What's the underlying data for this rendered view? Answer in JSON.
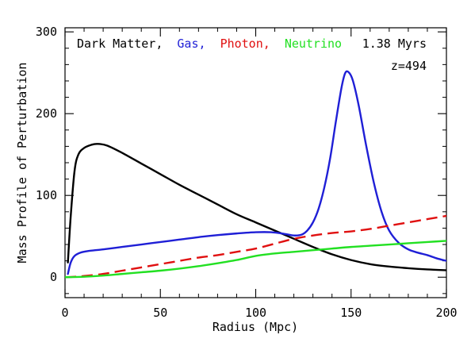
{
  "chart_data": {
    "type": "line",
    "xlabel": "Radius (Mpc)",
    "ylabel": "Mass Profile of Perturbation",
    "xlim": [
      0,
      200
    ],
    "ylim": [
      -25,
      305
    ],
    "xticks": [
      "0",
      "50",
      "100",
      "150",
      "200"
    ],
    "yticks": [
      "0",
      "100",
      "200",
      "300"
    ],
    "xtick_values": [
      0,
      50,
      100,
      150,
      200
    ],
    "ytick_values": [
      0,
      100,
      200,
      300
    ],
    "grid": false,
    "legend_placement": "top-left",
    "annotations": {
      "time": "1.38 Myrs",
      "redshift": "z=494"
    },
    "legend": [
      {
        "label": "Dark Matter,",
        "color": "#000000"
      },
      {
        "label": "Gas,",
        "color": "#1f1fd6"
      },
      {
        "label": "Photon,",
        "color": "#e01010"
      },
      {
        "label": "Neutrino",
        "color": "#22e022"
      }
    ],
    "series": [
      {
        "name": "Dark Matter",
        "color": "#000000",
        "dash": "solid",
        "points": [
          [
            1.5,
            18
          ],
          [
            3,
            75
          ],
          [
            5,
            130
          ],
          [
            7,
            150
          ],
          [
            10,
            158
          ],
          [
            14,
            162
          ],
          [
            17,
            163
          ],
          [
            22,
            161
          ],
          [
            30,
            152
          ],
          [
            40,
            139
          ],
          [
            50,
            126
          ],
          [
            60,
            113
          ],
          [
            70,
            101
          ],
          [
            80,
            89
          ],
          [
            90,
            77
          ],
          [
            100,
            67
          ],
          [
            110,
            57
          ],
          [
            120,
            47
          ],
          [
            130,
            37
          ],
          [
            140,
            28
          ],
          [
            150,
            21
          ],
          [
            160,
            16
          ],
          [
            170,
            13
          ],
          [
            180,
            11
          ],
          [
            190,
            9.5
          ],
          [
            200,
            8.5
          ]
        ]
      },
      {
        "name": "Gas",
        "color": "#1f1fd6",
        "dash": "solid",
        "points": [
          [
            1.5,
            4
          ],
          [
            3,
            18
          ],
          [
            5,
            26
          ],
          [
            8,
            30
          ],
          [
            12,
            32
          ],
          [
            20,
            34
          ],
          [
            30,
            37
          ],
          [
            40,
            40
          ],
          [
            50,
            43
          ],
          [
            60,
            46
          ],
          [
            70,
            49
          ],
          [
            80,
            51.5
          ],
          [
            90,
            53.5
          ],
          [
            100,
            55
          ],
          [
            108,
            55
          ],
          [
            115,
            53
          ],
          [
            120,
            51
          ],
          [
            124,
            52
          ],
          [
            127,
            57
          ],
          [
            130,
            67
          ],
          [
            133,
            84
          ],
          [
            136,
            110
          ],
          [
            139,
            145
          ],
          [
            142,
            190
          ],
          [
            145,
            232
          ],
          [
            147,
            250
          ],
          [
            149,
            250
          ],
          [
            151,
            240
          ],
          [
            154,
            210
          ],
          [
            158,
            160
          ],
          [
            162,
            115
          ],
          [
            166,
            80
          ],
          [
            170,
            57
          ],
          [
            175,
            42
          ],
          [
            180,
            34
          ],
          [
            185,
            30
          ],
          [
            190,
            27
          ],
          [
            195,
            23
          ],
          [
            200,
            20
          ]
        ]
      },
      {
        "name": "Photon",
        "color": "#e01010",
        "dash": "dashed",
        "points": [
          [
            0,
            0
          ],
          [
            5,
            0.5
          ],
          [
            10,
            1.5
          ],
          [
            20,
            4
          ],
          [
            30,
            8
          ],
          [
            40,
            12
          ],
          [
            50,
            16
          ],
          [
            60,
            20
          ],
          [
            70,
            24
          ],
          [
            80,
            27
          ],
          [
            90,
            31
          ],
          [
            100,
            35
          ],
          [
            110,
            41
          ],
          [
            120,
            47
          ],
          [
            130,
            51
          ],
          [
            140,
            54
          ],
          [
            150,
            56
          ],
          [
            160,
            59
          ],
          [
            170,
            63
          ],
          [
            180,
            67
          ],
          [
            190,
            71
          ],
          [
            200,
            75
          ]
        ]
      },
      {
        "name": "Neutrino",
        "color": "#22e022",
        "dash": "solid",
        "points": [
          [
            0,
            0
          ],
          [
            10,
            0.5
          ],
          [
            20,
            2
          ],
          [
            30,
            4
          ],
          [
            40,
            6
          ],
          [
            50,
            8
          ],
          [
            60,
            10.5
          ],
          [
            70,
            13.5
          ],
          [
            80,
            17
          ],
          [
            90,
            21
          ],
          [
            100,
            26
          ],
          [
            110,
            29
          ],
          [
            120,
            31
          ],
          [
            130,
            33
          ],
          [
            140,
            35
          ],
          [
            150,
            37
          ],
          [
            160,
            38.5
          ],
          [
            170,
            40
          ],
          [
            180,
            41.5
          ],
          [
            190,
            43
          ],
          [
            200,
            44.5
          ]
        ]
      }
    ]
  }
}
